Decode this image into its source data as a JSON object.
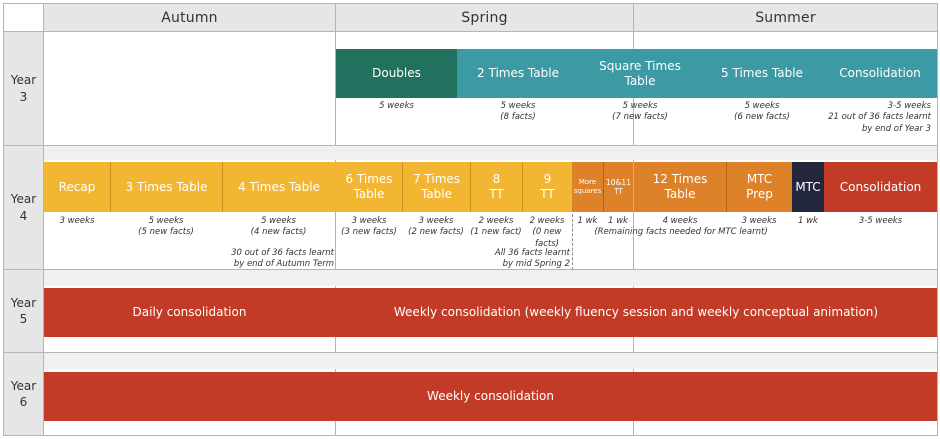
{
  "terms": [
    "Autumn",
    "Spring",
    "Summer"
  ],
  "colors": {
    "yellow": "#f3b633",
    "orange": "#de822a",
    "teal": "#3b9aa4",
    "dark_green": "#22705e",
    "red": "#c23b27",
    "navy": "#23273d",
    "header_bg": "#e6e6e6"
  },
  "years": [
    {
      "label": "Year\n3",
      "blocks": [
        {
          "label": "Doubles",
          "color": "dark_green",
          "note": "5 weeks"
        },
        {
          "label": "2 Times Table",
          "color": "teal",
          "note": "5 weeks\n(8 facts)"
        },
        {
          "label": "Square Times\nTable",
          "color": "teal",
          "note": "5 weeks\n(7 new facts)"
        },
        {
          "label": "5 Times Table",
          "color": "teal",
          "note": "5 weeks\n(6 new facts)"
        },
        {
          "label": "Consolidation",
          "color": "teal",
          "note": "3-5 weeks\n21 out of 36 facts learnt\nby end of Year 3"
        }
      ]
    },
    {
      "label": "Year\n4",
      "blocks": [
        {
          "label": "Recap",
          "color": "yellow",
          "note": "3 weeks"
        },
        {
          "label": "3 Times Table",
          "color": "yellow",
          "note": "5 weeks\n(5 new facts)"
        },
        {
          "label": "4 Times Table",
          "color": "yellow",
          "note": "5 weeks\n(4 new facts)"
        },
        {
          "label": "6 Times\nTable",
          "color": "yellow",
          "note": "3 weeks\n(3 new facts)"
        },
        {
          "label": "7 Times\nTable",
          "color": "yellow",
          "note": "3 weeks\n(2 new facts)"
        },
        {
          "label": "8\nTT",
          "color": "yellow",
          "note": "2 weeks\n(1 new fact)"
        },
        {
          "label": "9\nTT",
          "color": "yellow",
          "note": "2 weeks\n(0 new\nfacts)"
        },
        {
          "label": "More\nsquares",
          "color": "orange",
          "note": "1 wk"
        },
        {
          "label": "10&11\nTT",
          "color": "orange",
          "note": "1 wk"
        },
        {
          "label": "12 Times\nTable",
          "color": "orange",
          "note": "4 weeks"
        },
        {
          "label": "MTC\nPrep",
          "color": "orange",
          "note": "3 weeks"
        },
        {
          "label": "MTC",
          "color": "navy",
          "note": "1 wk"
        },
        {
          "label": "Consolidation",
          "color": "red",
          "note": "3-5 weeks"
        }
      ],
      "extra_notes": [
        "30 out of 36 facts learnt\nby end of Autumn Term",
        "All 36 facts learnt\nby mid Spring 2",
        "(Remaining facts needed for MTC learnt)"
      ]
    },
    {
      "label": "Year\n5",
      "blocks": [
        {
          "label": "Daily consolidation",
          "color": "red"
        },
        {
          "label": "Weekly consolidation (weekly fluency session and weekly conceptual animation)",
          "color": "red"
        }
      ]
    },
    {
      "label": "Year\n6",
      "blocks": [
        {
          "label": "Weekly consolidation",
          "color": "red"
        }
      ]
    }
  ]
}
